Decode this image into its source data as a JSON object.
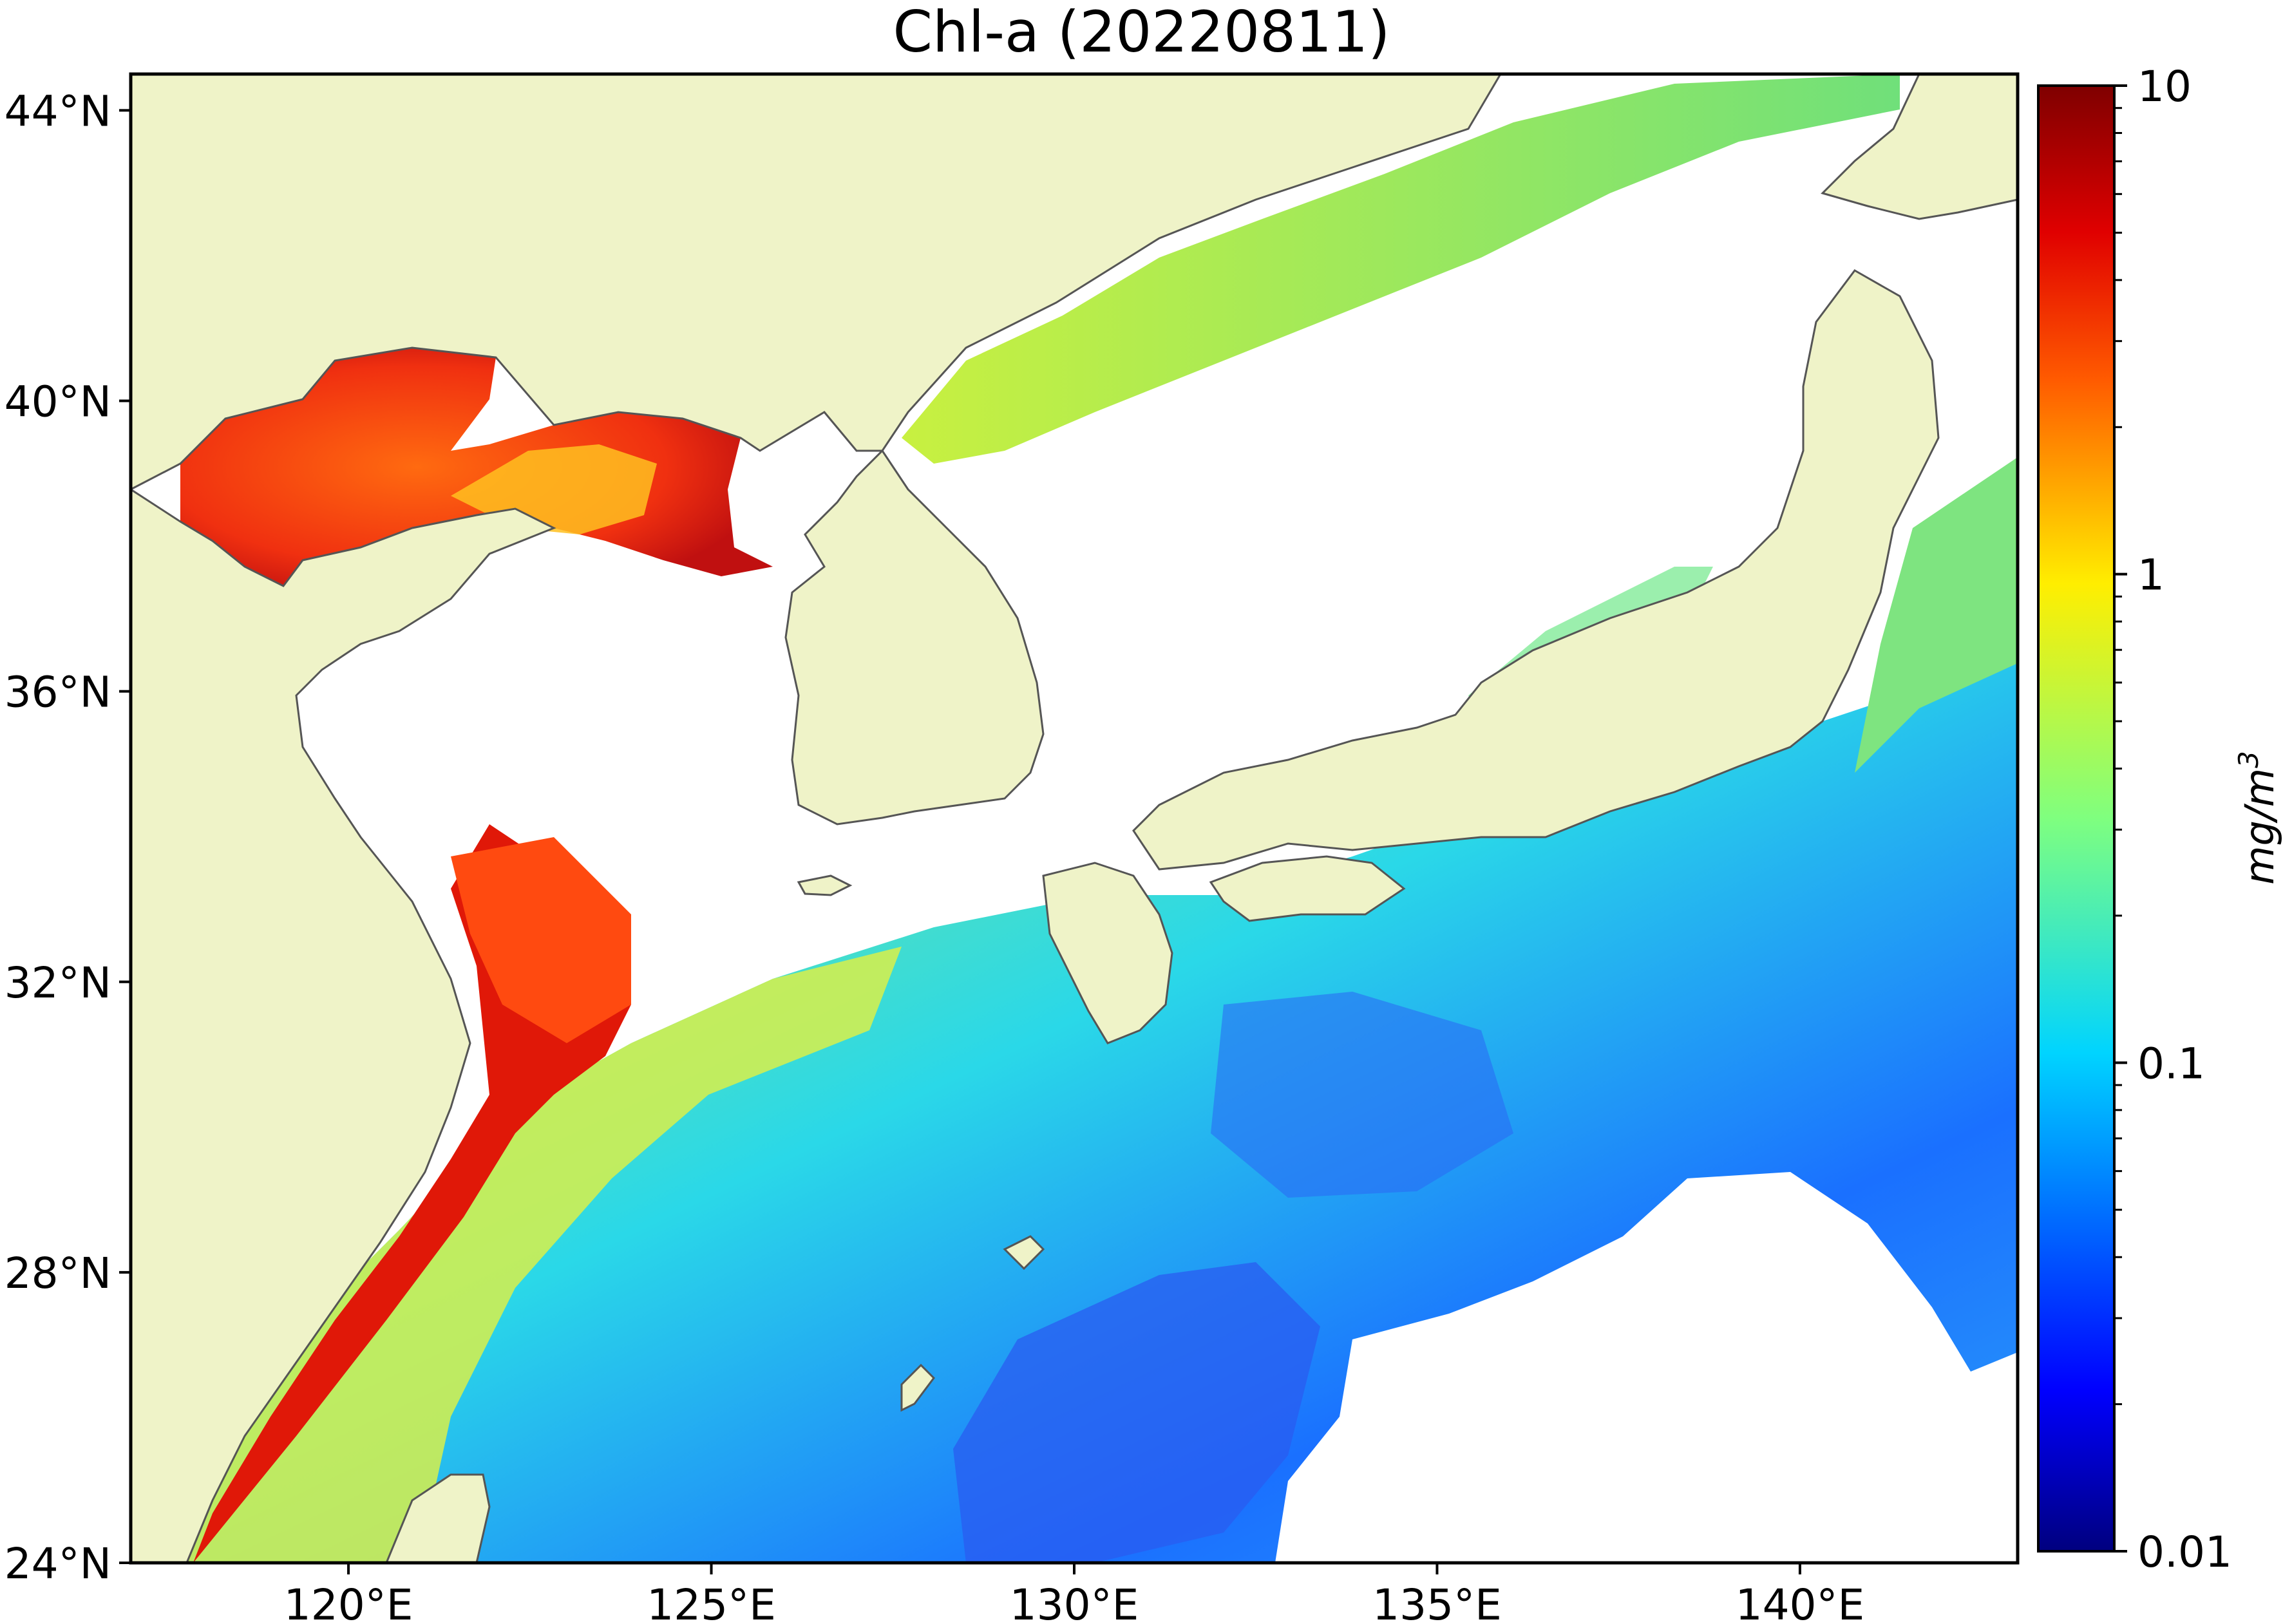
{
  "title": "Chl-a (20220811)",
  "map": {
    "type": "geographic-raster",
    "variable": "Chl-a",
    "date_label": "20220811",
    "lon_range": [
      117,
      143
    ],
    "lat_range": [
      24,
      44.5
    ],
    "lon_ticks": [
      {
        "value": 120,
        "label": "120°E"
      },
      {
        "value": 125,
        "label": "125°E"
      },
      {
        "value": 130,
        "label": "130°E"
      },
      {
        "value": 135,
        "label": "135°E"
      },
      {
        "value": 140,
        "label": "140°E"
      }
    ],
    "lat_ticks": [
      {
        "value": 24,
        "label": "24°N"
      },
      {
        "value": 28,
        "label": "28°N"
      },
      {
        "value": 32,
        "label": "32°N"
      },
      {
        "value": 36,
        "label": "36°N"
      },
      {
        "value": 40,
        "label": "40°N"
      },
      {
        "value": 44,
        "label": "44°N"
      }
    ],
    "land_color": "#eff3c8",
    "coastline_color": "#555555",
    "no_data_color": "#ffffff"
  },
  "colorbar": {
    "scale": "log",
    "range": [
      0.01,
      10
    ],
    "tick_labels": [
      {
        "value": 10,
        "label": "10"
      },
      {
        "value": 1,
        "label": "1"
      },
      {
        "value": 0.1,
        "label": "0.1"
      },
      {
        "value": 0.01,
        "label": "0.01"
      }
    ],
    "unit_label": "mg/m",
    "unit_superscript": "3",
    "colormap": "jet",
    "colors": [
      "#00007f",
      "#0000ff",
      "#007fff",
      "#00ffff",
      "#7fff7f",
      "#ffff00",
      "#ff7f00",
      "#ff0000",
      "#7f0000"
    ]
  }
}
